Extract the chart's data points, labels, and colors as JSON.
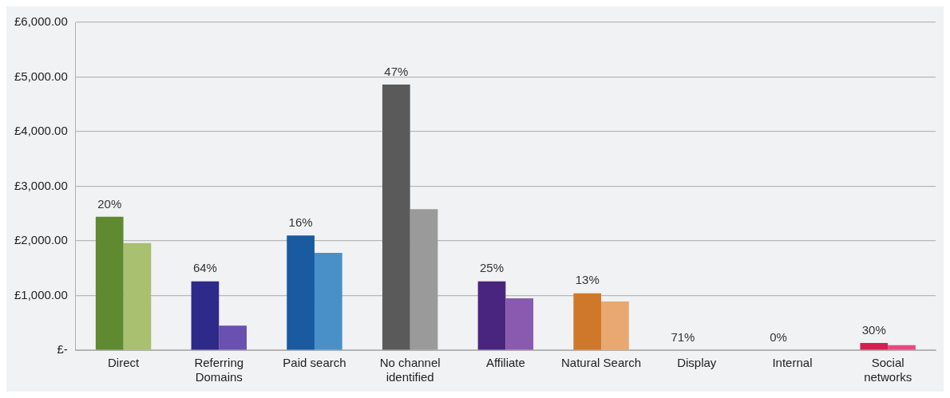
{
  "chart_data": {
    "type": "bar",
    "categories": [
      "Direct",
      "Referring Domains",
      "Paid search",
      "No channel identified",
      "Affiliate",
      "Natural Search",
      "Display",
      "Internal",
      "Social networks"
    ],
    "series": [
      {
        "colors": [
          "#5f8a30",
          "#2e2a8a",
          "#1a5aa0",
          "#5a5a5a",
          "#4a2580",
          "#d0782a",
          "#c0c0c0",
          "#c0c0c0",
          "#d42050"
        ],
        "values": [
          2440,
          1260,
          2100,
          4860,
          1260,
          1040,
          0,
          0,
          130
        ]
      },
      {
        "colors": [
          "#a8c070",
          "#6a50b0",
          "#4a90c8",
          "#9a9a9a",
          "#8a5ab0",
          "#e8a870",
          "#d8d8d8",
          "#d8d8d8",
          "#e84880"
        ],
        "values": [
          1960,
          450,
          1780,
          2580,
          950,
          890,
          0,
          0,
          90
        ]
      }
    ],
    "ylim": [
      0,
      6000
    ],
    "yticks": [
      {
        "value": 0,
        "label": "£-"
      },
      {
        "value": 1000,
        "label": "£1,000.00"
      },
      {
        "value": 2000,
        "label": "£2,000.00"
      },
      {
        "value": 3000,
        "label": "£3,000.00"
      },
      {
        "value": 4000,
        "label": "£4,000.00"
      },
      {
        "value": 5000,
        "label": "£5,000.00"
      },
      {
        "value": 6000,
        "label": "£6,000.00"
      }
    ],
    "annotations": [
      {
        "text": "20%",
        "x": "Direct",
        "y": 2440
      },
      {
        "text": "64%",
        "x": "Referring Domains",
        "y": 1260
      },
      {
        "text": "16%",
        "x": "Paid search",
        "y": 2100
      },
      {
        "text": "47%",
        "x": "No channel identified",
        "y": 4860
      },
      {
        "text": "25%",
        "x": "Affiliate",
        "y": 1260
      },
      {
        "text": "13%",
        "x": "Natural Search",
        "y": 1040
      },
      {
        "text": "71%",
        "x": "Display",
        "y": 0
      },
      {
        "text": "0%",
        "x": "Internal",
        "y": 0
      },
      {
        "text": "30%",
        "x": "Social networks",
        "y": 130
      }
    ],
    "grid": "y",
    "legend": false
  }
}
